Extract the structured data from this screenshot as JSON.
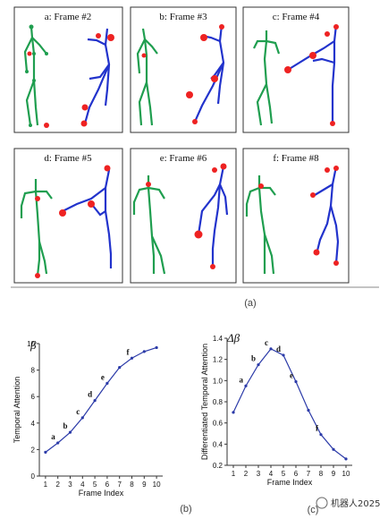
{
  "panels": [
    {
      "title": "a: Frame #2"
    },
    {
      "title": "b: Frame #3"
    },
    {
      "title": "c: Frame #4"
    },
    {
      "title": "d: Frame #5"
    },
    {
      "title": "e: Frame #6"
    },
    {
      "title": "f: Frame #8"
    }
  ],
  "caption_a": "(a)",
  "caption_b": "(b)",
  "caption_c": "(c)",
  "watermark": "机器人2025",
  "colors": {
    "green": "#1f9e4f",
    "blue": "#2233cc",
    "red": "#ee2222",
    "curve": "#2b3aa8"
  },
  "chart_data": [
    {
      "type": "line",
      "title": "β",
      "xlabel": "Frame Index",
      "ylabel": "Temporal Attention",
      "x": [
        1,
        2,
        3,
        4,
        5,
        6,
        7,
        8,
        9,
        10
      ],
      "values": [
        1.8,
        2.5,
        3.3,
        4.4,
        5.7,
        7.0,
        8.2,
        8.9,
        9.4,
        9.7
      ],
      "ylim": [
        0,
        10
      ],
      "yticks": [
        0,
        2,
        4,
        6,
        8,
        10
      ],
      "xticks": [
        1,
        2,
        3,
        4,
        5,
        6,
        7,
        8,
        9,
        10
      ],
      "point_labels": [
        {
          "x": 2,
          "text": "a"
        },
        {
          "x": 3,
          "text": "b"
        },
        {
          "x": 4,
          "text": "c"
        },
        {
          "x": 5,
          "text": "d"
        },
        {
          "x": 6,
          "text": "e"
        },
        {
          "x": 8,
          "text": "f"
        }
      ]
    },
    {
      "type": "line",
      "title": "Δβ",
      "xlabel": "Frame Index",
      "ylabel": "Differentiated Temporal Attention",
      "x": [
        1,
        2,
        3,
        4,
        5,
        6,
        7,
        8,
        9,
        10
      ],
      "values": [
        0.7,
        0.95,
        1.15,
        1.3,
        1.24,
        0.99,
        0.72,
        0.49,
        0.35,
        0.26
      ],
      "ylim": [
        0.2,
        1.4
      ],
      "yticks": [
        0.2,
        0.4,
        0.6,
        0.8,
        1.0,
        1.2,
        1.4
      ],
      "xticks": [
        1,
        2,
        3,
        4,
        5,
        6,
        7,
        8,
        9,
        10
      ],
      "point_labels": [
        {
          "x": 2,
          "text": "a"
        },
        {
          "x": 3,
          "text": "b"
        },
        {
          "x": 4,
          "text": "c"
        },
        {
          "x": 5,
          "text": "d"
        },
        {
          "x": 6,
          "text": "e"
        },
        {
          "x": 8,
          "text": "f"
        }
      ]
    }
  ]
}
